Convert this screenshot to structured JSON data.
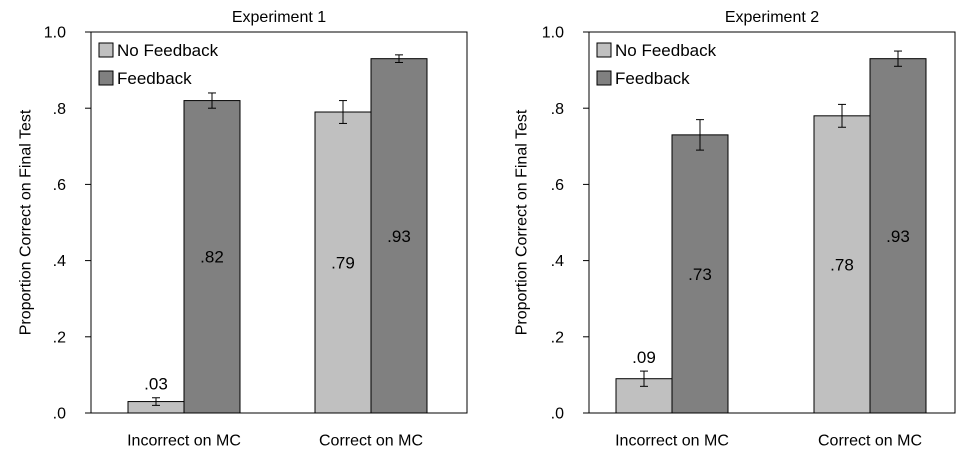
{
  "chart_data": [
    {
      "type": "bar",
      "title": "Experiment 1",
      "ylabel": "Proportion Correct on Final Test",
      "xlabel": "",
      "ylim": [
        0,
        1.0
      ],
      "yticks": [
        0,
        0.2,
        0.4,
        0.6,
        0.8,
        1.0
      ],
      "ytick_labels": [
        ".0",
        ".2",
        ".4",
        ".6",
        ".8",
        "1.0"
      ],
      "categories": [
        "Incorrect on MC",
        "Correct on MC"
      ],
      "series": [
        {
          "name": "No Feedback",
          "color": "#c0c0c0",
          "values": [
            0.03,
            0.79
          ],
          "errors": [
            0.01,
            0.03
          ],
          "value_labels": [
            ".03",
            ".79"
          ]
        },
        {
          "name": "Feedback",
          "color": "#808080",
          "values": [
            0.82,
            0.93
          ],
          "errors": [
            0.02,
            0.01
          ],
          "value_labels": [
            ".82",
            ".93"
          ]
        }
      ],
      "legend": "top-left",
      "grid": false
    },
    {
      "type": "bar",
      "title": "Experiment 2",
      "ylabel": "Proportion Correct on Final Test",
      "xlabel": "",
      "ylim": [
        0,
        1.0
      ],
      "yticks": [
        0,
        0.2,
        0.4,
        0.6,
        0.8,
        1.0
      ],
      "ytick_labels": [
        ".0",
        ".2",
        ".4",
        ".6",
        ".8",
        "1.0"
      ],
      "categories": [
        "Incorrect on MC",
        "Correct on MC"
      ],
      "series": [
        {
          "name": "No Feedback",
          "color": "#c0c0c0",
          "values": [
            0.09,
            0.78
          ],
          "errors": [
            0.02,
            0.03
          ],
          "value_labels": [
            ".09",
            ".78"
          ]
        },
        {
          "name": "Feedback",
          "color": "#808080",
          "values": [
            0.73,
            0.93
          ],
          "errors": [
            0.04,
            0.02
          ],
          "value_labels": [
            ".73",
            ".93"
          ]
        }
      ],
      "legend": "top-left",
      "grid": false
    }
  ]
}
